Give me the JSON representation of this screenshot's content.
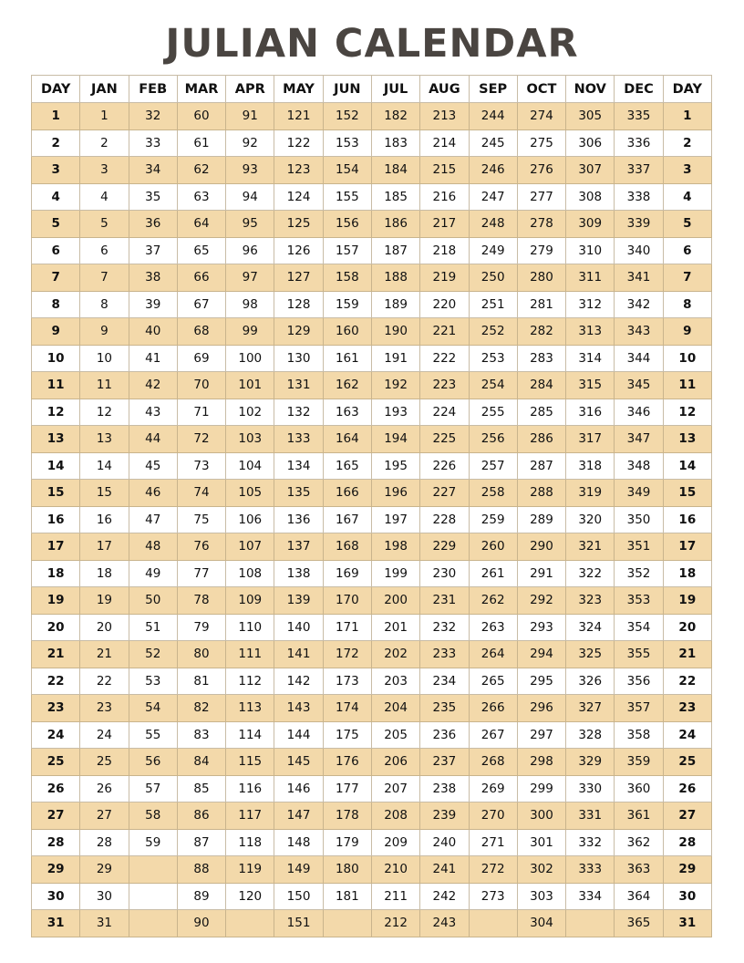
{
  "title": "JULIAN CALENDAR",
  "colors": {
    "title": "#4a4541",
    "stripe": "#f3d9aa",
    "border": "#c8bca6"
  },
  "headers": [
    "DAY",
    "JAN",
    "FEB",
    "MAR",
    "APR",
    "MAY",
    "JUN",
    "JUL",
    "AUG",
    "SEP",
    "OCT",
    "NOV",
    "DEC",
    "DAY"
  ],
  "rows": [
    [
      "1",
      "1",
      "32",
      "60",
      "91",
      "121",
      "152",
      "182",
      "213",
      "244",
      "274",
      "305",
      "335",
      "1"
    ],
    [
      "2",
      "2",
      "33",
      "61",
      "92",
      "122",
      "153",
      "183",
      "214",
      "245",
      "275",
      "306",
      "336",
      "2"
    ],
    [
      "3",
      "3",
      "34",
      "62",
      "93",
      "123",
      "154",
      "184",
      "215",
      "246",
      "276",
      "307",
      "337",
      "3"
    ],
    [
      "4",
      "4",
      "35",
      "63",
      "94",
      "124",
      "155",
      "185",
      "216",
      "247",
      "277",
      "308",
      "338",
      "4"
    ],
    [
      "5",
      "5",
      "36",
      "64",
      "95",
      "125",
      "156",
      "186",
      "217",
      "248",
      "278",
      "309",
      "339",
      "5"
    ],
    [
      "6",
      "6",
      "37",
      "65",
      "96",
      "126",
      "157",
      "187",
      "218",
      "249",
      "279",
      "310",
      "340",
      "6"
    ],
    [
      "7",
      "7",
      "38",
      "66",
      "97",
      "127",
      "158",
      "188",
      "219",
      "250",
      "280",
      "311",
      "341",
      "7"
    ],
    [
      "8",
      "8",
      "39",
      "67",
      "98",
      "128",
      "159",
      "189",
      "220",
      "251",
      "281",
      "312",
      "342",
      "8"
    ],
    [
      "9",
      "9",
      "40",
      "68",
      "99",
      "129",
      "160",
      "190",
      "221",
      "252",
      "282",
      "313",
      "343",
      "9"
    ],
    [
      "10",
      "10",
      "41",
      "69",
      "100",
      "130",
      "161",
      "191",
      "222",
      "253",
      "283",
      "314",
      "344",
      "10"
    ],
    [
      "11",
      "11",
      "42",
      "70",
      "101",
      "131",
      "162",
      "192",
      "223",
      "254",
      "284",
      "315",
      "345",
      "11"
    ],
    [
      "12",
      "12",
      "43",
      "71",
      "102",
      "132",
      "163",
      "193",
      "224",
      "255",
      "285",
      "316",
      "346",
      "12"
    ],
    [
      "13",
      "13",
      "44",
      "72",
      "103",
      "133",
      "164",
      "194",
      "225",
      "256",
      "286",
      "317",
      "347",
      "13"
    ],
    [
      "14",
      "14",
      "45",
      "73",
      "104",
      "134",
      "165",
      "195",
      "226",
      "257",
      "287",
      "318",
      "348",
      "14"
    ],
    [
      "15",
      "15",
      "46",
      "74",
      "105",
      "135",
      "166",
      "196",
      "227",
      "258",
      "288",
      "319",
      "349",
      "15"
    ],
    [
      "16",
      "16",
      "47",
      "75",
      "106",
      "136",
      "167",
      "197",
      "228",
      "259",
      "289",
      "320",
      "350",
      "16"
    ],
    [
      "17",
      "17",
      "48",
      "76",
      "107",
      "137",
      "168",
      "198",
      "229",
      "260",
      "290",
      "321",
      "351",
      "17"
    ],
    [
      "18",
      "18",
      "49",
      "77",
      "108",
      "138",
      "169",
      "199",
      "230",
      "261",
      "291",
      "322",
      "352",
      "18"
    ],
    [
      "19",
      "19",
      "50",
      "78",
      "109",
      "139",
      "170",
      "200",
      "231",
      "262",
      "292",
      "323",
      "353",
      "19"
    ],
    [
      "20",
      "20",
      "51",
      "79",
      "110",
      "140",
      "171",
      "201",
      "232",
      "263",
      "293",
      "324",
      "354",
      "20"
    ],
    [
      "21",
      "21",
      "52",
      "80",
      "111",
      "141",
      "172",
      "202",
      "233",
      "264",
      "294",
      "325",
      "355",
      "21"
    ],
    [
      "22",
      "22",
      "53",
      "81",
      "112",
      "142",
      "173",
      "203",
      "234",
      "265",
      "295",
      "326",
      "356",
      "22"
    ],
    [
      "23",
      "23",
      "54",
      "82",
      "113",
      "143",
      "174",
      "204",
      "235",
      "266",
      "296",
      "327",
      "357",
      "23"
    ],
    [
      "24",
      "24",
      "55",
      "83",
      "114",
      "144",
      "175",
      "205",
      "236",
      "267",
      "297",
      "328",
      "358",
      "24"
    ],
    [
      "25",
      "25",
      "56",
      "84",
      "115",
      "145",
      "176",
      "206",
      "237",
      "268",
      "298",
      "329",
      "359",
      "25"
    ],
    [
      "26",
      "26",
      "57",
      "85",
      "116",
      "146",
      "177",
      "207",
      "238",
      "269",
      "299",
      "330",
      "360",
      "26"
    ],
    [
      "27",
      "27",
      "58",
      "86",
      "117",
      "147",
      "178",
      "208",
      "239",
      "270",
      "300",
      "331",
      "361",
      "27"
    ],
    [
      "28",
      "28",
      "59",
      "87",
      "118",
      "148",
      "179",
      "209",
      "240",
      "271",
      "301",
      "332",
      "362",
      "28"
    ],
    [
      "29",
      "29",
      "",
      "88",
      "119",
      "149",
      "180",
      "210",
      "241",
      "272",
      "302",
      "333",
      "363",
      "29"
    ],
    [
      "30",
      "30",
      "",
      "89",
      "120",
      "150",
      "181",
      "211",
      "242",
      "273",
      "303",
      "334",
      "364",
      "30"
    ],
    [
      "31",
      "31",
      "",
      "90",
      "",
      "151",
      "",
      "212",
      "243",
      "",
      "304",
      "",
      "365",
      "31"
    ]
  ]
}
